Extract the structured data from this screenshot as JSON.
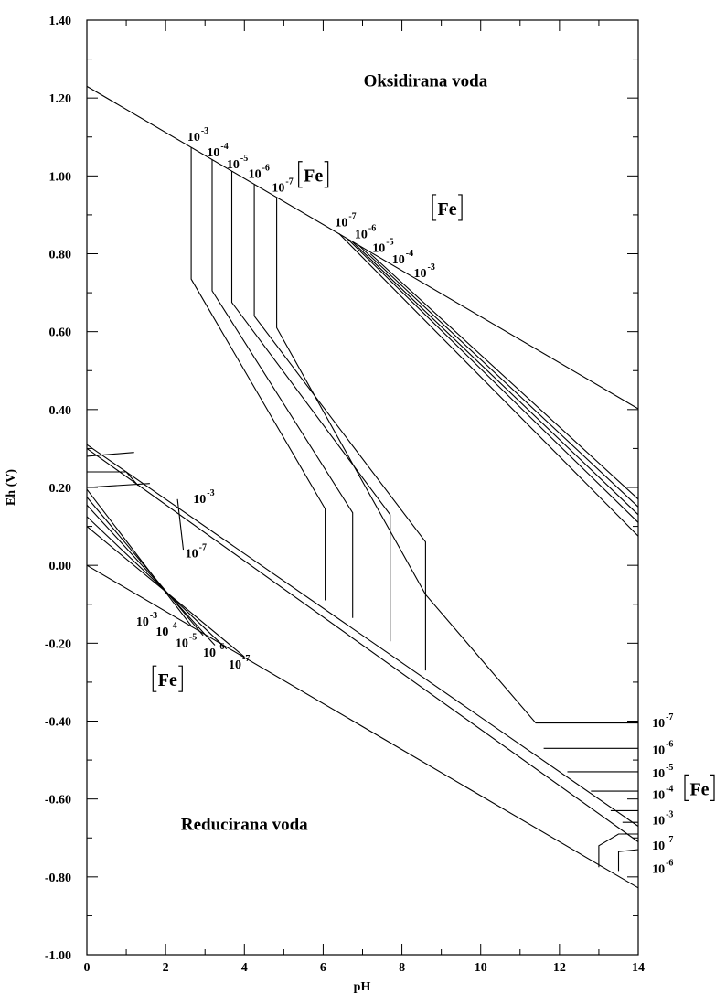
{
  "chart_data": {
    "type": "line",
    "title": "",
    "xlabel": "pH",
    "ylabel": "Eh (V)",
    "xlim": [
      0,
      14
    ],
    "ylim": [
      -1.0,
      1.4
    ],
    "x_ticks": [
      0,
      2,
      4,
      6,
      8,
      10,
      12,
      14
    ],
    "y_ticks": [
      1.4,
      1.2,
      1.0,
      0.8,
      0.6,
      0.4,
      0.2,
      0.0,
      -0.2,
      -0.4,
      -0.6,
      -0.8,
      -1.0
    ],
    "x_tick_labels": [
      "0",
      "2",
      "4",
      "6",
      "8",
      "10",
      "12",
      "14"
    ],
    "y_tick_labels": [
      "1.40",
      "1.20",
      "1.00",
      "0.80",
      "0.60",
      "0.40",
      "0.20",
      "0.00",
      "-0.20",
      "-0.40",
      "-0.60",
      "-0.80",
      "-1.00"
    ],
    "grid": false,
    "region_labels": [
      {
        "text": "Oksidirana voda",
        "x": 8.6,
        "y": 1.23
      },
      {
        "text": "Reducirana voda",
        "x": 4.0,
        "y": -0.68
      }
    ],
    "series": [
      {
        "points": [
          [
            0,
            1.23
          ],
          [
            14,
            0.402
          ]
        ]
      },
      {
        "points": [
          [
            0,
            0.0
          ],
          [
            14,
            -0.828
          ]
        ]
      },
      {
        "points": [
          [
            0,
            0.31
          ],
          [
            14,
            -0.67
          ]
        ]
      },
      {
        "points": [
          [
            0,
            0.3
          ],
          [
            14,
            -0.71
          ]
        ]
      },
      {
        "points": [
          [
            2.65,
            1.073
          ],
          [
            2.65,
            0.735
          ],
          [
            6.05,
            0.145
          ],
          [
            6.05,
            -0.09
          ]
        ]
      },
      {
        "points": [
          [
            3.18,
            1.042
          ],
          [
            3.18,
            0.705
          ],
          [
            6.75,
            0.135
          ],
          [
            6.75,
            -0.135
          ]
        ]
      },
      {
        "points": [
          [
            3.68,
            1.012
          ],
          [
            3.68,
            0.675
          ],
          [
            7.7,
            0.13
          ],
          [
            7.7,
            -0.195
          ]
        ]
      },
      {
        "points": [
          [
            4.25,
            0.979
          ],
          [
            4.25,
            0.64
          ],
          [
            8.6,
            0.06
          ],
          [
            8.6,
            -0.27
          ]
        ]
      },
      {
        "points": [
          [
            4.82,
            0.945
          ],
          [
            4.82,
            0.61
          ],
          [
            8.6,
            -0.075
          ],
          [
            11.4,
            -0.405
          ],
          [
            14,
            -0.405
          ]
        ]
      },
      {
        "points": [
          [
            6.4,
            0.852
          ],
          [
            14,
            0.075
          ]
        ]
      },
      {
        "points": [
          [
            6.6,
            0.84
          ],
          [
            14,
            0.11
          ]
        ]
      },
      {
        "points": [
          [
            6.75,
            0.83
          ],
          [
            14,
            0.13
          ]
        ]
      },
      {
        "points": [
          [
            6.9,
            0.822
          ],
          [
            14,
            0.15
          ]
        ]
      },
      {
        "points": [
          [
            7.2,
            0.8
          ],
          [
            14,
            0.17
          ]
        ]
      },
      {
        "points": [
          [
            0,
            0.28
          ],
          [
            1.2,
            0.29
          ]
        ]
      },
      {
        "points": [
          [
            0,
            0.24
          ],
          [
            1.0,
            0.24
          ],
          [
            1.3,
            0.205
          ]
        ]
      },
      {
        "points": [
          [
            0,
            0.2
          ],
          [
            1.6,
            0.21
          ]
        ]
      },
      {
        "points": [
          [
            2.3,
            0.17
          ],
          [
            2.45,
            0.04
          ]
        ]
      },
      {
        "points": [
          [
            0,
            0.195
          ],
          [
            2.65,
            -0.155
          ]
        ]
      },
      {
        "points": [
          [
            0,
            0.175
          ],
          [
            2.95,
            -0.18
          ]
        ]
      },
      {
        "points": [
          [
            0,
            0.155
          ],
          [
            3.25,
            -0.205
          ]
        ]
      },
      {
        "points": [
          [
            0,
            0.125
          ],
          [
            3.55,
            -0.215
          ]
        ]
      },
      {
        "points": [
          [
            0,
            0.1
          ],
          [
            4.0,
            -0.235
          ]
        ]
      },
      {
        "points": [
          [
            11.6,
            -0.47
          ],
          [
            14,
            -0.47
          ]
        ]
      },
      {
        "points": [
          [
            12.2,
            -0.53
          ],
          [
            14,
            -0.53
          ]
        ]
      },
      {
        "points": [
          [
            12.8,
            -0.58
          ],
          [
            14,
            -0.58
          ]
        ]
      },
      {
        "points": [
          [
            13.3,
            -0.63
          ],
          [
            14,
            -0.63
          ]
        ]
      },
      {
        "points": [
          [
            13.6,
            -0.66
          ],
          [
            14,
            -0.66
          ]
        ]
      },
      {
        "points": [
          [
            13.0,
            -0.775
          ],
          [
            13.0,
            -0.72
          ],
          [
            13.5,
            -0.69
          ],
          [
            14,
            -0.69
          ]
        ]
      },
      {
        "points": [
          [
            13.5,
            -0.785
          ],
          [
            13.5,
            -0.735
          ],
          [
            14,
            -0.73
          ]
        ]
      }
    ],
    "concentration_labels": [
      {
        "base": "10",
        "exp": "-3",
        "x": 2.55,
        "y": 1.09
      },
      {
        "base": "10",
        "exp": "-4",
        "x": 3.05,
        "y": 1.05
      },
      {
        "base": "10",
        "exp": "-5",
        "x": 3.55,
        "y": 1.02
      },
      {
        "base": "10",
        "exp": "-6",
        "x": 4.1,
        "y": 0.995
      },
      {
        "base": "10",
        "exp": "-7",
        "x": 4.7,
        "y": 0.96
      },
      {
        "base": "10",
        "exp": "-7",
        "x": 6.3,
        "y": 0.87
      },
      {
        "base": "10",
        "exp": "-6",
        "x": 6.8,
        "y": 0.84
      },
      {
        "base": "10",
        "exp": "-5",
        "x": 7.25,
        "y": 0.805
      },
      {
        "base": "10",
        "exp": "-4",
        "x": 7.75,
        "y": 0.775
      },
      {
        "base": "10",
        "exp": "-3",
        "x": 8.3,
        "y": 0.74
      },
      {
        "base": "10",
        "exp": "-3",
        "x": 2.7,
        "y": 0.16
      },
      {
        "base": "10",
        "exp": "-7",
        "x": 2.5,
        "y": 0.02
      },
      {
        "base": "10",
        "exp": "-3",
        "x": 1.25,
        "y": -0.155
      },
      {
        "base": "10",
        "exp": "-4",
        "x": 1.75,
        "y": -0.18
      },
      {
        "base": "10",
        "exp": "-5",
        "x": 2.25,
        "y": -0.21
      },
      {
        "base": "10",
        "exp": "-6",
        "x": 2.95,
        "y": -0.235
      },
      {
        "base": "10",
        "exp": "-7",
        "x": 3.6,
        "y": -0.265
      },
      {
        "base": "10",
        "exp": "-7",
        "x": 14.35,
        "y": -0.415
      },
      {
        "base": "10",
        "exp": "-6",
        "x": 14.35,
        "y": -0.485
      },
      {
        "base": "10",
        "exp": "-5",
        "x": 14.35,
        "y": -0.545
      },
      {
        "base": "10",
        "exp": "-4",
        "x": 14.35,
        "y": -0.6
      },
      {
        "base": "10",
        "exp": "-3",
        "x": 14.35,
        "y": -0.665
      },
      {
        "base": "10",
        "exp": "-7",
        "x": 14.35,
        "y": -0.73
      },
      {
        "base": "10",
        "exp": "-6",
        "x": 14.35,
        "y": -0.79
      }
    ],
    "fe_labels": [
      {
        "text": "Fe",
        "x": 5.75,
        "y": 0.985
      },
      {
        "text": "Fe",
        "x": 9.15,
        "y": 0.9
      },
      {
        "text": "Fe",
        "x": 2.05,
        "y": -0.31
      },
      {
        "text": "Fe",
        "x": 15.85,
        "y": -0.59
      }
    ]
  }
}
